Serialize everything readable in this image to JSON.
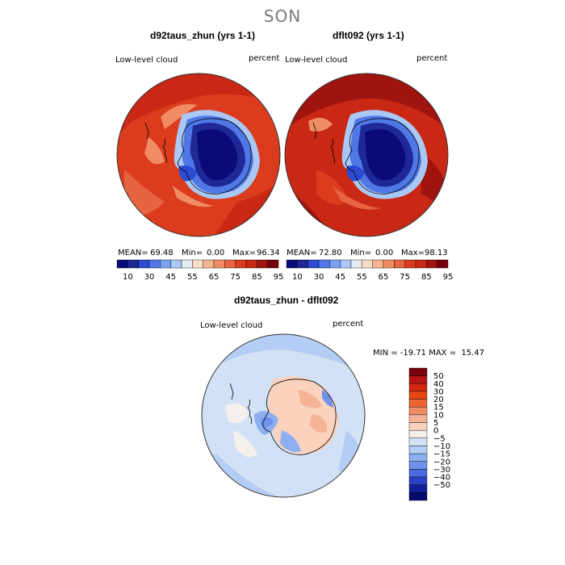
{
  "season": "SON",
  "top_left": {
    "title": "d92taus_zhun (yrs 1-1)",
    "variable": "Low-level cloud",
    "units": "percent",
    "stats": {
      "mean_label": "MEAN=",
      "mean": "69.48",
      "min_label": "Min=",
      "min": "0.00",
      "max_label": "Max=",
      "max": "96.34"
    }
  },
  "top_right": {
    "title": "dflt092 (yrs 1-1)",
    "variable": "Low-level cloud",
    "units": "percent",
    "stats": {
      "mean_label": "MEAN=",
      "mean": "72.80",
      "min_label": "Min=",
      "min": "0.00",
      "max_label": "Max=",
      "max": "98.13"
    }
  },
  "diff": {
    "title": "d92taus_zhun - dflt092",
    "variable": "Low-level cloud",
    "units": "percent",
    "minmax": "MIN = -19.71 MAX =  15.47"
  },
  "colorbar_abs": {
    "colors": [
      "#0a0a78",
      "#1e2896",
      "#2d4bd2",
      "#4f78e6",
      "#78a0f0",
      "#aac8f5",
      "#e6ebf5",
      "#fadcc8",
      "#f5b48c",
      "#f08c64",
      "#e66440",
      "#dc3c1e",
      "#c82814",
      "#a01410",
      "#78000a"
    ],
    "labels": [
      "10",
      "30",
      "45",
      "55",
      "65",
      "75",
      "85",
      "95"
    ]
  },
  "colorbar_diff": {
    "colors": [
      "#78000a",
      "#b41414",
      "#d2280f",
      "#e64614",
      "#eb6432",
      "#f08c64",
      "#f5b496",
      "#fad2be",
      "#f5f0ec",
      "#d2e1f5",
      "#b4cdf5",
      "#8caff0",
      "#6e91eb",
      "#4b69e1",
      "#2d41c8",
      "#141e9b",
      "#050a6e"
    ],
    "labels": [
      "50",
      "40",
      "30",
      "20",
      "15",
      "10",
      "5",
      "0",
      "−5",
      "−10",
      "−15",
      "−20",
      "−30",
      "−40",
      "−50"
    ]
  }
}
